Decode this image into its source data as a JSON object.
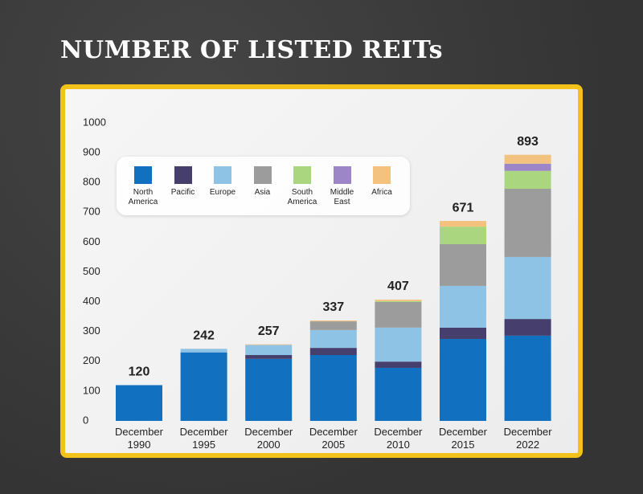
{
  "chart_data": {
    "type": "stacked_bar",
    "title": "NUMBER OF LISTED REITs",
    "categories": [
      "December 1990",
      "December 1995",
      "December 2000",
      "December 2005",
      "December 2010",
      "December 2015",
      "December 2022"
    ],
    "series": [
      {
        "name": "North America",
        "color": "#1170bf",
        "values": [
          120,
          230,
          208,
          221,
          178,
          275,
          286
        ]
      },
      {
        "name": "Pacific",
        "color": "#463f6e",
        "values": [
          0,
          0,
          13,
          24,
          21,
          38,
          56
        ]
      },
      {
        "name": "Europe",
        "color": "#8fc3e6",
        "values": [
          0,
          12,
          34,
          60,
          114,
          140,
          208
        ]
      },
      {
        "name": "Asia",
        "color": "#9c9c9c",
        "values": [
          0,
          0,
          0,
          29,
          86,
          140,
          229
        ]
      },
      {
        "name": "South America",
        "color": "#a9d67f",
        "values": [
          0,
          0,
          0,
          0,
          3,
          59,
          60
        ]
      },
      {
        "name": "Middle East",
        "color": "#9c86c8",
        "values": [
          0,
          0,
          0,
          0,
          0,
          0,
          24
        ]
      },
      {
        "name": "Africa",
        "color": "#f3c27e",
        "values": [
          0,
          0,
          2,
          3,
          5,
          19,
          30
        ]
      }
    ],
    "totals": [
      120,
      242,
      257,
      337,
      407,
      671,
      893
    ],
    "ylim": [
      0,
      1000
    ],
    "yticks": [
      0,
      100,
      200,
      300,
      400,
      500,
      600,
      700,
      800,
      900,
      1000
    ],
    "grid": false
  }
}
